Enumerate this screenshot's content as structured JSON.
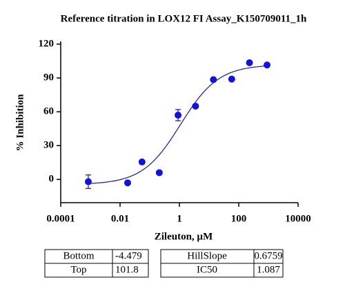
{
  "chart_data": {
    "type": "scatter",
    "title": "Reference titration in LOX12 FI Assay_K150709011_1h",
    "x_label": "Zileuton, µM",
    "y_label": "% Inhibition",
    "x_log": true,
    "x": [
      0.00085,
      0.018,
      0.055,
      0.21,
      0.9,
      3.5,
      14,
      58,
      230,
      900
    ],
    "values": [
      -2,
      -3,
      15.5,
      6,
      57,
      65,
      88.5,
      89,
      103.5,
      101.5
    ],
    "errors": [
      6,
      null,
      null,
      null,
      5,
      null,
      null,
      null,
      null,
      null
    ],
    "color": "#1010e8",
    "xlim": [
      0.0001,
      10000
    ],
    "xticks": [
      0.0001,
      0.01,
      1,
      100,
      10000
    ],
    "ylim": [
      -20,
      120
    ],
    "yticks": [
      0,
      30,
      60,
      90,
      120
    ]
  },
  "fit_table": {
    "rows": [
      [
        "Bottom",
        -4.479,
        "HillSlope",
        0.6759
      ],
      [
        "Top",
        101.8,
        "IC50",
        1.087
      ]
    ]
  }
}
